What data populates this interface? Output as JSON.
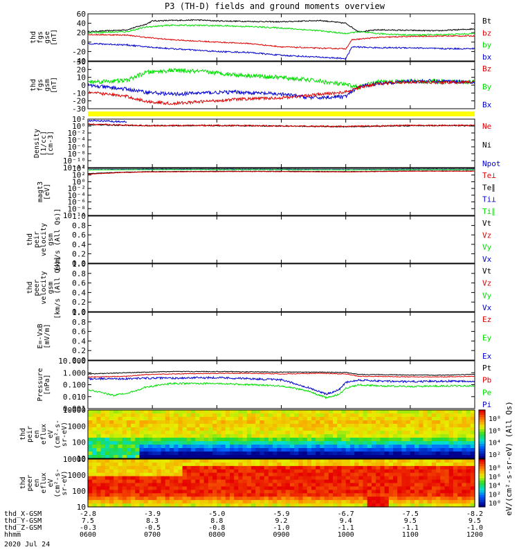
{
  "title": "P3 (TH-D) fields and ground moments overview",
  "colors": {
    "black": "#000000",
    "red": "#e00000",
    "green": "#00e000",
    "blue": "#0000d0",
    "yellow": "#ffff00"
  },
  "chart_data": [
    {
      "id": "panel1",
      "type": "line",
      "ylabel": [
        "thd",
        "fgs",
        "gse",
        "[nT]"
      ],
      "yticks": [
        60,
        40,
        20,
        0,
        -20,
        -40
      ],
      "ylim": [
        -40,
        60
      ],
      "legend": [
        {
          "label": "Bt",
          "color": "black"
        },
        {
          "label": "bz",
          "color": "red"
        },
        {
          "label": "by",
          "color": "green"
        },
        {
          "label": "bx",
          "color": "blue"
        }
      ],
      "series": [
        {
          "name": "Bt",
          "color": "black",
          "x": [
            0,
            0.6,
            0.9,
            1.0,
            1.3,
            1.7,
            2.0,
            2.5,
            3.0,
            3.6,
            4.0,
            4.2,
            4.5,
            5.0,
            5.4,
            5.7,
            6.0
          ],
          "values": [
            22,
            26,
            38,
            45,
            46,
            47,
            45,
            44,
            43,
            46,
            40,
            22,
            26,
            25,
            24,
            26,
            28
          ],
          "noise": 1.2
        },
        {
          "name": "bz",
          "color": "red",
          "x": [
            0,
            0.6,
            0.9,
            1.3,
            2.0,
            2.5,
            3.0,
            3.6,
            4.0,
            4.1,
            4.5,
            5.0,
            5.5,
            6.0
          ],
          "values": [
            16,
            15,
            10,
            5,
            0,
            -3,
            -10,
            -13,
            -14,
            5,
            10,
            12,
            13,
            13
          ],
          "noise": 1.2
        },
        {
          "name": "by",
          "color": "green",
          "x": [
            0,
            0.6,
            0.9,
            1.3,
            2.0,
            2.5,
            3.0,
            3.6,
            4.0,
            4.2,
            4.5,
            5.0,
            5.5,
            6.0
          ],
          "values": [
            20,
            22,
            32,
            36,
            35,
            33,
            30,
            24,
            18,
            22,
            18,
            15,
            16,
            18
          ],
          "noise": 1.5
        },
        {
          "name": "bx",
          "color": "blue",
          "x": [
            0,
            0.6,
            0.9,
            1.3,
            2.0,
            2.5,
            3.0,
            3.6,
            4.0,
            4.1,
            4.5,
            5.0,
            5.5,
            6.0
          ],
          "values": [
            -3,
            -6,
            -10,
            -14,
            -20,
            -22,
            -28,
            -32,
            -35,
            -10,
            -12,
            -12,
            -14,
            -14
          ],
          "noise": 1.5
        }
      ]
    },
    {
      "id": "panel2",
      "type": "line",
      "ylabel": [
        "thd",
        "fgs",
        "gsm",
        "[nT]"
      ],
      "yticks": [
        30,
        20,
        10,
        0,
        -10,
        -20,
        -30
      ],
      "ylim": [
        -35,
        30
      ],
      "legend": [
        {
          "label": "Bz",
          "color": "red"
        },
        {
          "label": "By",
          "color": "green"
        },
        {
          "label": "Bx",
          "color": "blue"
        }
      ],
      "series": [
        {
          "name": "By",
          "color": "green",
          "x": [
            0,
            0.6,
            0.9,
            1.3,
            1.8,
            2.3,
            3.0,
            3.5,
            4.0,
            4.2,
            4.5,
            5.0,
            5.5,
            6.0
          ],
          "values": [
            2,
            4,
            15,
            18,
            16,
            12,
            8,
            4,
            -2,
            -5,
            2,
            3,
            2,
            3
          ],
          "noise": 3
        },
        {
          "name": "Bx",
          "color": "blue",
          "x": [
            0,
            0.6,
            0.9,
            1.3,
            1.8,
            2.3,
            3.0,
            3.5,
            4.0,
            4.2,
            4.5,
            5.0,
            5.5,
            6.0
          ],
          "values": [
            -3,
            -8,
            -12,
            -15,
            -13,
            -12,
            -15,
            -20,
            -18,
            -5,
            0,
            3,
            3,
            2
          ],
          "noise": 2.5
        },
        {
          "name": "Bz",
          "color": "red",
          "x": [
            0,
            0.6,
            0.9,
            1.3,
            1.8,
            2.3,
            3.0,
            3.5,
            4.0,
            4.2,
            4.5,
            5.0,
            5.5,
            6.0
          ],
          "values": [
            -12,
            -18,
            -25,
            -28,
            -25,
            -22,
            -20,
            -16,
            -12,
            -6,
            0,
            2,
            1,
            2
          ],
          "noise": 2
        }
      ]
    },
    {
      "id": "panel3",
      "type": "line",
      "log": true,
      "ylabel": [
        "Density",
        "[1/cc]",
        "[cm-3]"
      ],
      "yticks": [
        "10²",
        "10⁰",
        "10⁻²",
        "10⁻⁴",
        "10⁻⁶",
        "10⁻⁸",
        "10⁻¹⁰",
        "10⁻¹²"
      ],
      "ylim": [
        -12,
        2
      ],
      "legend": [
        {
          "label": "Ne",
          "color": "red"
        },
        {
          "label": "Ni",
          "color": "black"
        },
        {
          "label": "Npot",
          "color": "blue"
        }
      ],
      "series": [
        {
          "name": "Ni",
          "color": "black",
          "x": [
            0,
            0.5,
            1,
            2,
            3,
            4,
            5,
            6
          ],
          "values": [
            0.4,
            0.2,
            0.1,
            0.1,
            0.0,
            -0.2,
            0.1,
            0.1
          ],
          "noise": 0.15
        },
        {
          "name": "Ne",
          "color": "red",
          "x": [
            0,
            0.5,
            1,
            2,
            3,
            4,
            5,
            6
          ],
          "values": [
            0.6,
            0.3,
            0.1,
            0.2,
            0.0,
            -0.1,
            0.2,
            0.2
          ],
          "noise": 0.2
        },
        {
          "name": "Npot",
          "color": "blue",
          "x": [
            0,
            0.3,
            0.6
          ],
          "values": [
            1.5,
            1.4,
            1.2
          ],
          "noise": 0.25
        }
      ]
    },
    {
      "id": "panel4",
      "type": "line",
      "log": true,
      "ylabel": [
        "magt3",
        "[eV]"
      ],
      "yticks": [
        "10⁴",
        "10²",
        "10⁰",
        "10⁻²",
        "10⁻⁴",
        "10⁻⁶",
        "10⁻⁸",
        "10⁻¹⁰"
      ],
      "ylim": [
        -10,
        4.2
      ],
      "legend": [
        {
          "label": "Te⊥",
          "color": "red"
        },
        {
          "label": "Te∥",
          "color": "black"
        },
        {
          "label": "Ti⊥",
          "color": "blue"
        },
        {
          "label": "Ti∥",
          "color": "green"
        }
      ],
      "series": [
        {
          "name": "Ti⊥",
          "color": "blue",
          "x": [
            0,
            1,
            2,
            3,
            4,
            5,
            6
          ],
          "values": [
            3.8,
            3.9,
            3.9,
            3.9,
            3.8,
            3.9,
            3.9
          ],
          "noise": 0.05
        },
        {
          "name": "Ti∥",
          "color": "green",
          "x": [
            0,
            1,
            2,
            3,
            4,
            5,
            6
          ],
          "values": [
            3.7,
            3.8,
            3.8,
            3.8,
            3.7,
            3.8,
            3.8
          ],
          "noise": 0.05
        },
        {
          "name": "Te∥",
          "color": "black",
          "x": [
            0,
            0.5,
            1,
            2,
            3,
            4,
            5,
            6
          ],
          "values": [
            2.6,
            3.0,
            3.2,
            3.3,
            3.3,
            3.2,
            3.4,
            3.4
          ],
          "noise": 0.06
        },
        {
          "name": "Te⊥",
          "color": "red",
          "x": [
            0,
            0.5,
            1,
            2,
            3,
            4,
            5,
            6
          ],
          "values": [
            2.4,
            2.9,
            3.1,
            3.2,
            3.2,
            3.1,
            3.3,
            3.3
          ],
          "noise": 0.06
        }
      ]
    },
    {
      "id": "panel5",
      "type": "line",
      "ylabel": [
        "thd",
        "peir",
        "velocity",
        "gsm",
        "[km/s (All Qs)]"
      ],
      "yticks": [
        "1.0",
        "0.8",
        "0.6",
        "0.4",
        "0.2",
        "0.0"
      ],
      "ylim": [
        0,
        1
      ],
      "legend": [
        {
          "label": "Vt",
          "color": "black"
        },
        {
          "label": "Vz",
          "color": "red"
        },
        {
          "label": "Vy",
          "color": "green"
        },
        {
          "label": "Vx",
          "color": "blue"
        }
      ],
      "series": []
    },
    {
      "id": "panel6",
      "type": "line",
      "ylabel": [
        "thd",
        "peer",
        "velocity",
        "gsm",
        "[km/s (All Qs)]"
      ],
      "yticks": [
        "1.0",
        "0.8",
        "0.6",
        "0.4",
        "0.2",
        "0.0"
      ],
      "ylim": [
        0,
        1
      ],
      "legend": [
        {
          "label": "Vt",
          "color": "black"
        },
        {
          "label": "Vz",
          "color": "red"
        },
        {
          "label": "Vy",
          "color": "green"
        },
        {
          "label": "Vx",
          "color": "blue"
        }
      ],
      "series": []
    },
    {
      "id": "panel7",
      "type": "line",
      "ylabel": [
        "E=-VxB",
        "[mV/m]"
      ],
      "yticks": [
        "1.0",
        "0.8",
        "0.6",
        "0.4",
        "0.2",
        "0.0"
      ],
      "ylim": [
        0,
        1
      ],
      "legend": [
        {
          "label": "Ez",
          "color": "red"
        },
        {
          "label": "Ey",
          "color": "green"
        },
        {
          "label": "Ex",
          "color": "blue"
        }
      ],
      "series": []
    },
    {
      "id": "panel8",
      "type": "line",
      "log": true,
      "ylabel": [
        "Pressure",
        "[nPa]"
      ],
      "yticks": [
        "10.000",
        "1.000",
        "0.100",
        "0.010",
        "0.001"
      ],
      "ylim": [
        -3,
        1
      ],
      "legend": [
        {
          "label": "Pt",
          "color": "black"
        },
        {
          "label": "Pb",
          "color": "red"
        },
        {
          "label": "Pe",
          "color": "green"
        },
        {
          "label": "Pi",
          "color": "blue"
        }
      ],
      "series": [
        {
          "name": "Pt",
          "color": "black",
          "x": [
            0,
            0.6,
            0.9,
            1.3,
            2.0,
            2.5,
            3.0,
            3.6,
            4.0,
            4.2,
            4.5,
            5.0,
            5.5,
            6.0
          ],
          "values": [
            -0.1,
            0.0,
            0.05,
            0.1,
            0.1,
            0.08,
            0.05,
            0.05,
            0.02,
            -0.15,
            -0.15,
            -0.2,
            -0.2,
            -0.15
          ],
          "noise": 0.03
        },
        {
          "name": "Pb",
          "color": "red",
          "x": [
            0,
            0.6,
            0.9,
            1.3,
            2.0,
            2.5,
            3.0,
            3.6,
            4.0,
            4.2,
            4.5,
            5.0,
            5.5,
            6.0
          ],
          "values": [
            -0.35,
            -0.3,
            -0.15,
            -0.1,
            -0.05,
            -0.05,
            -0.1,
            -0.05,
            -0.1,
            -0.3,
            -0.3,
            -0.35,
            -0.35,
            -0.3
          ],
          "noise": 0.03
        },
        {
          "name": "Pi",
          "color": "blue",
          "x": [
            0,
            0.6,
            0.9,
            1.3,
            2.0,
            2.5,
            3.0,
            3.4,
            3.7,
            3.9,
            4.0,
            4.2,
            4.5,
            5.0,
            5.5,
            6.0
          ],
          "values": [
            -0.5,
            -0.5,
            -0.45,
            -0.45,
            -0.4,
            -0.5,
            -0.6,
            -1.2,
            -1.8,
            -1.4,
            -0.8,
            -0.6,
            -0.7,
            -0.75,
            -0.7,
            -0.7
          ],
          "noise": 0.08
        },
        {
          "name": "Pe",
          "color": "green",
          "x": [
            0,
            0.4,
            0.7,
            0.9,
            1.3,
            2.0,
            2.5,
            3.0,
            3.4,
            3.7,
            3.9,
            4.0,
            4.2,
            4.5,
            5.0,
            5.5,
            6.0
          ],
          "values": [
            -1.4,
            -1.9,
            -1.6,
            -1.2,
            -0.9,
            -0.9,
            -1.0,
            -1.1,
            -1.5,
            -2.1,
            -1.8,
            -1.3,
            -1.0,
            -1.1,
            -1.15,
            -1.1,
            -1.1
          ],
          "noise": 0.07
        }
      ]
    },
    {
      "id": "panel9",
      "type": "heatmap",
      "ylabel": [
        "thd",
        "peir",
        "en",
        "eflux",
        "eV",
        "(cm²-s-",
        "sr-eV)"
      ],
      "yticks": [
        "10000",
        "1000",
        "100",
        "10"
      ],
      "colorbar_ticks": [
        "10⁸",
        "10⁶",
        "10⁴",
        "10²"
      ],
      "colorbar_label": "eV/(cm²-s-sr-eV) (All Qs)"
    },
    {
      "id": "panel10",
      "type": "heatmap",
      "ylabel": [
        "thd",
        "peer",
        "en",
        "eflux",
        "eV",
        "(cm²-s-",
        "sr-eV)"
      ],
      "yticks": [
        "10000",
        "1000",
        "100",
        "10"
      ],
      "colorbar_ticks": [
        "10⁸",
        "10⁶",
        "10⁴",
        "10²",
        "10⁰"
      ],
      "colorbar_label": "eV/(cm²-s-sr-eV) (All Qs)"
    }
  ],
  "xaxis": {
    "rows": [
      {
        "label": "thd_X-GSM",
        "values": [
          "-2.8",
          "-3.9",
          "-5.0",
          "-5.9",
          "-6.7",
          "-7.5",
          "-8.2"
        ]
      },
      {
        "label": "thd_Y-GSM",
        "values": [
          "7.5",
          "8.3",
          "8.8",
          "9.2",
          "9.4",
          "9.5",
          "9.5"
        ]
      },
      {
        "label": "thd_Z-GSM",
        "values": [
          "-0.3",
          "-0.5",
          "-0.8",
          "-1.0",
          "-1.1",
          "-1.1",
          "-1.0"
        ]
      },
      {
        "label": "hhmm",
        "values": [
          "0600",
          "0700",
          "0800",
          "0900",
          "1000",
          "1100",
          "1200"
        ]
      }
    ],
    "date": "2020 Jul 24"
  }
}
